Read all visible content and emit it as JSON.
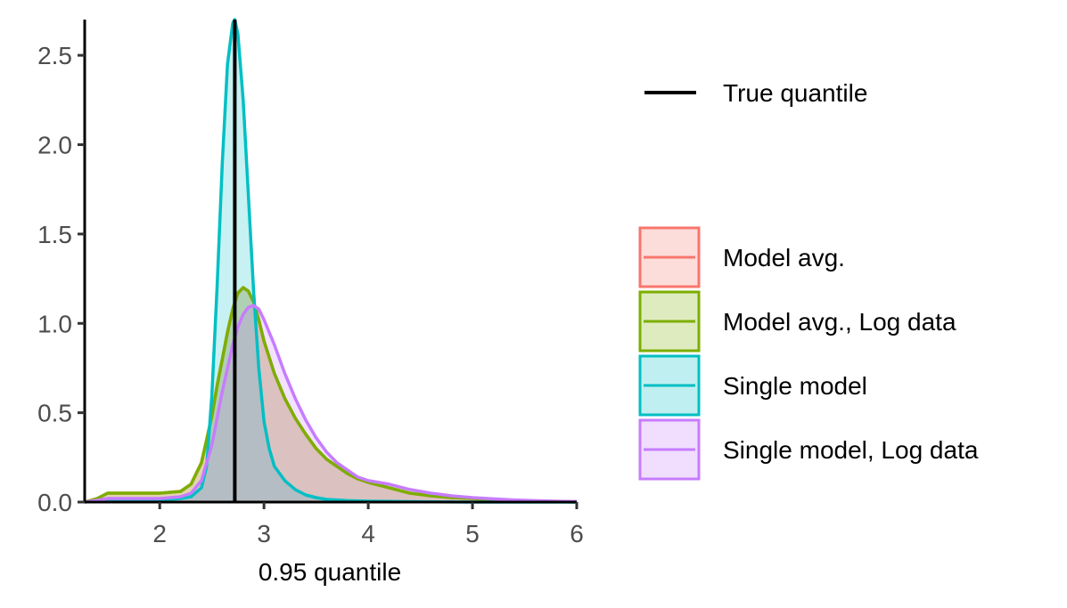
{
  "chart_data": {
    "type": "area",
    "xlabel": "0.95 quantile",
    "ylabel": "",
    "xlim": [
      1.28,
      6.0
    ],
    "ylim": [
      0,
      2.7
    ],
    "x_ticks": [
      2,
      3,
      4,
      5,
      6
    ],
    "y_ticks": [
      0.0,
      0.5,
      1.0,
      1.5,
      2.0,
      2.5
    ],
    "x_tick_labels": [
      "2",
      "3",
      "4",
      "5",
      "6"
    ],
    "y_tick_labels": [
      "0.0",
      "0.5",
      "1.0",
      "1.5",
      "2.0",
      "2.5"
    ],
    "grid": false,
    "legend_position": "right",
    "reference_line": {
      "name": "True quantile",
      "x": 2.72,
      "color": "#000000"
    },
    "series": [
      {
        "name": "Model avg.",
        "color": "#F8766D",
        "x": [
          1.28,
          1.4,
          1.5,
          1.6,
          1.8,
          2.0,
          2.2,
          2.3,
          2.4,
          2.5,
          2.55,
          2.6,
          2.65,
          2.7,
          2.75,
          2.8,
          2.85,
          2.9,
          2.95,
          3.0,
          3.1,
          3.2,
          3.3,
          3.4,
          3.5,
          3.6,
          3.7,
          3.8,
          3.9,
          4.0,
          4.2,
          4.4,
          4.6,
          4.8,
          5.0,
          5.2,
          5.4,
          5.6,
          5.8,
          6.0
        ],
        "values": [
          0.0,
          0.02,
          0.05,
          0.05,
          0.05,
          0.05,
          0.06,
          0.1,
          0.22,
          0.48,
          0.65,
          0.8,
          0.95,
          1.08,
          1.17,
          1.2,
          1.18,
          1.12,
          1.02,
          0.9,
          0.72,
          0.58,
          0.47,
          0.38,
          0.3,
          0.24,
          0.2,
          0.16,
          0.13,
          0.11,
          0.08,
          0.05,
          0.035,
          0.025,
          0.02,
          0.012,
          0.008,
          0.005,
          0.003,
          0.0
        ]
      },
      {
        "name": "Model avg., Log data",
        "color": "#7CAE00",
        "x": [
          1.28,
          1.4,
          1.5,
          1.6,
          1.8,
          2.0,
          2.2,
          2.3,
          2.4,
          2.5,
          2.55,
          2.6,
          2.65,
          2.7,
          2.75,
          2.8,
          2.85,
          2.9,
          2.95,
          3.0,
          3.1,
          3.2,
          3.3,
          3.4,
          3.5,
          3.6,
          3.7,
          3.8,
          3.9,
          4.0,
          4.2,
          4.4,
          4.6,
          4.8,
          5.0,
          5.2,
          5.4,
          5.6,
          5.8,
          6.0
        ],
        "values": [
          0.0,
          0.02,
          0.05,
          0.05,
          0.05,
          0.05,
          0.06,
          0.1,
          0.22,
          0.48,
          0.65,
          0.8,
          0.95,
          1.08,
          1.17,
          1.2,
          1.18,
          1.12,
          1.02,
          0.9,
          0.72,
          0.58,
          0.47,
          0.38,
          0.3,
          0.24,
          0.2,
          0.16,
          0.13,
          0.11,
          0.08,
          0.05,
          0.035,
          0.025,
          0.02,
          0.012,
          0.008,
          0.005,
          0.003,
          0.0
        ]
      },
      {
        "name": "Single model",
        "color": "#00BFC4",
        "x": [
          1.28,
          1.5,
          1.8,
          2.0,
          2.2,
          2.3,
          2.4,
          2.45,
          2.5,
          2.55,
          2.6,
          2.65,
          2.7,
          2.72,
          2.75,
          2.8,
          2.85,
          2.9,
          2.95,
          3.0,
          3.05,
          3.1,
          3.2,
          3.3,
          3.4,
          3.5,
          3.6,
          3.8,
          4.0,
          4.5,
          5.0,
          6.0
        ],
        "values": [
          0.0,
          0.01,
          0.01,
          0.01,
          0.02,
          0.03,
          0.08,
          0.2,
          0.6,
          1.2,
          1.9,
          2.45,
          2.68,
          2.7,
          2.62,
          2.25,
          1.72,
          1.18,
          0.75,
          0.45,
          0.3,
          0.2,
          0.12,
          0.07,
          0.04,
          0.025,
          0.015,
          0.008,
          0.005,
          0.002,
          0.0,
          0.0
        ]
      },
      {
        "name": "Single model, Log data",
        "color": "#C77CFF",
        "x": [
          1.28,
          1.4,
          1.5,
          1.6,
          1.8,
          2.0,
          2.2,
          2.3,
          2.4,
          2.5,
          2.6,
          2.7,
          2.75,
          2.8,
          2.85,
          2.9,
          2.95,
          3.0,
          3.1,
          3.2,
          3.3,
          3.4,
          3.5,
          3.6,
          3.7,
          3.8,
          3.9,
          4.0,
          4.1,
          4.2,
          4.4,
          4.6,
          4.8,
          5.0,
          5.2,
          5.4,
          5.6,
          5.8,
          6.0
        ],
        "values": [
          0.0,
          0.01,
          0.02,
          0.02,
          0.02,
          0.02,
          0.03,
          0.05,
          0.12,
          0.32,
          0.62,
          0.88,
          0.98,
          1.05,
          1.09,
          1.1,
          1.08,
          1.02,
          0.88,
          0.72,
          0.58,
          0.46,
          0.36,
          0.28,
          0.22,
          0.18,
          0.14,
          0.12,
          0.11,
          0.1,
          0.07,
          0.05,
          0.035,
          0.025,
          0.018,
          0.012,
          0.008,
          0.005,
          0.003
        ]
      }
    ]
  }
}
